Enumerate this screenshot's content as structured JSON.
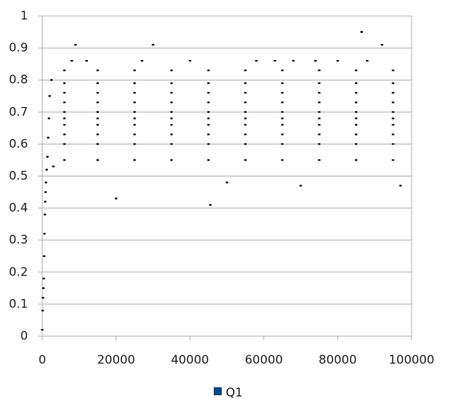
{
  "chart_data": {
    "type": "scatter",
    "series": [
      {
        "name": "Q1",
        "color": "#004586",
        "marker_color": "#000000",
        "x": [
          0,
          100,
          200,
          300,
          400,
          500,
          600,
          700,
          800,
          900,
          1000,
          1200,
          1400,
          1600,
          1800,
          2000,
          2500,
          6000,
          15000,
          25000,
          35000,
          45000,
          55000,
          65000,
          75000,
          85000,
          95000,
          6000,
          15000,
          25000,
          35000,
          45000,
          55000,
          65000,
          75000,
          85000,
          95000,
          6000,
          15000,
          25000,
          35000,
          45000,
          55000,
          65000,
          75000,
          85000,
          95000,
          6000,
          15000,
          25000,
          35000,
          45000,
          55000,
          65000,
          75000,
          85000,
          95000,
          6000,
          15000,
          25000,
          35000,
          45000,
          55000,
          65000,
          75000,
          85000,
          95000,
          6000,
          15000,
          25000,
          35000,
          45000,
          55000,
          65000,
          75000,
          85000,
          95000,
          6000,
          15000,
          25000,
          35000,
          45000,
          55000,
          65000,
          75000,
          85000,
          95000,
          6000,
          15000,
          25000,
          35000,
          45000,
          55000,
          65000,
          75000,
          85000,
          95000,
          6000,
          15000,
          25000,
          35000,
          45000,
          55000,
          65000,
          75000,
          85000,
          95000,
          6000,
          15000,
          25000,
          35000,
          45000,
          55000,
          65000,
          75000,
          85000,
          95000,
          9000,
          30000,
          92000,
          86500,
          45500,
          20000,
          8000,
          12000,
          27000,
          40000,
          58000,
          63000,
          68000,
          74000,
          80000,
          88000,
          97000,
          3000,
          50000,
          70000
        ],
        "values": [
          0.02,
          0.08,
          0.12,
          0.15,
          0.18,
          0.25,
          0.32,
          0.38,
          0.42,
          0.45,
          0.48,
          0.52,
          0.56,
          0.62,
          0.68,
          0.75,
          0.8,
          0.55,
          0.55,
          0.55,
          0.55,
          0.55,
          0.55,
          0.55,
          0.55,
          0.55,
          0.55,
          0.6,
          0.6,
          0.6,
          0.6,
          0.6,
          0.6,
          0.6,
          0.6,
          0.6,
          0.6,
          0.63,
          0.63,
          0.63,
          0.63,
          0.63,
          0.63,
          0.63,
          0.63,
          0.63,
          0.63,
          0.66,
          0.66,
          0.66,
          0.66,
          0.66,
          0.66,
          0.66,
          0.66,
          0.66,
          0.66,
          0.68,
          0.68,
          0.68,
          0.68,
          0.68,
          0.68,
          0.68,
          0.68,
          0.68,
          0.68,
          0.7,
          0.7,
          0.7,
          0.7,
          0.7,
          0.7,
          0.7,
          0.7,
          0.7,
          0.7,
          0.73,
          0.73,
          0.73,
          0.73,
          0.73,
          0.73,
          0.73,
          0.73,
          0.73,
          0.73,
          0.76,
          0.76,
          0.76,
          0.76,
          0.76,
          0.76,
          0.76,
          0.76,
          0.76,
          0.76,
          0.79,
          0.79,
          0.79,
          0.79,
          0.79,
          0.79,
          0.79,
          0.79,
          0.79,
          0.79,
          0.83,
          0.83,
          0.83,
          0.83,
          0.83,
          0.83,
          0.83,
          0.83,
          0.83,
          0.83,
          0.91,
          0.91,
          0.91,
          0.95,
          0.41,
          0.43,
          0.86,
          0.86,
          0.86,
          0.86,
          0.86,
          0.86,
          0.86,
          0.86,
          0.86,
          0.86,
          0.47,
          0.53,
          0.48,
          0.47
        ]
      }
    ],
    "xlim": [
      0,
      100000
    ],
    "xticks": [
      0,
      20000,
      40000,
      60000,
      80000,
      100000
    ],
    "ylim": [
      0,
      1
    ],
    "yticks": [
      0,
      0.1,
      0.2,
      0.3,
      0.4,
      0.5,
      0.6,
      0.7,
      0.8,
      0.9,
      1
    ],
    "grid": true,
    "legend": "bottom"
  }
}
